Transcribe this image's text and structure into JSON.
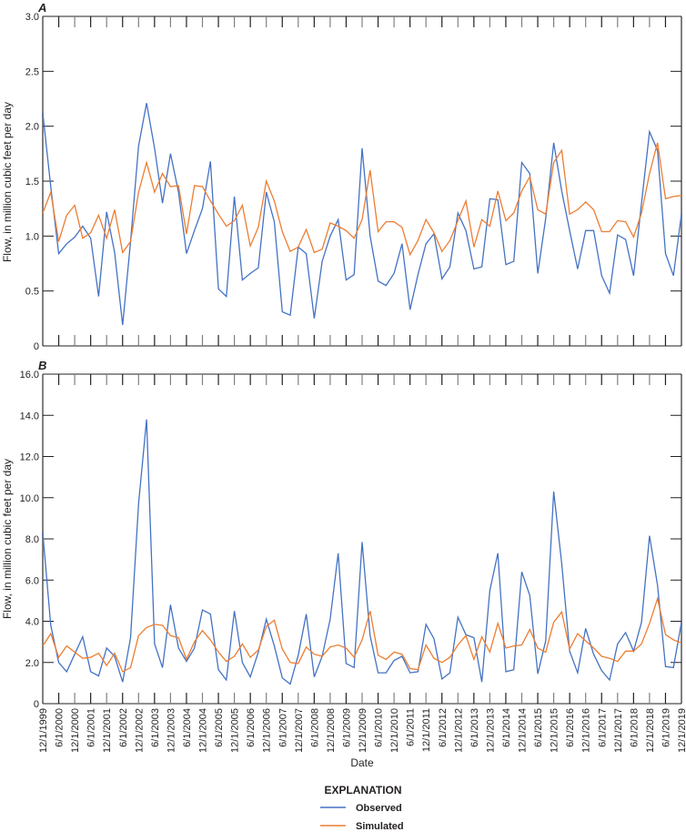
{
  "chart_data": [
    {
      "panel": "A",
      "type": "line",
      "title": "",
      "xlabel": "Date",
      "ylabel": "Flow, in million cubic feet per day",
      "ylim": [
        0,
        3.0
      ],
      "yticks": [
        "0",
        "0.5",
        "1.0",
        "1.5",
        "2.0",
        "2.5",
        "3.0"
      ],
      "ytick_values": [
        0,
        0.5,
        1.0,
        1.5,
        2.0,
        2.5,
        3.0
      ],
      "grid": false,
      "x_start": "12/1/1999",
      "x_end": "12/1/2019",
      "x_step": "quarterly",
      "series": [
        {
          "name": "Observed",
          "color": "#4472c4",
          "values": [
            2.12,
            1.45,
            0.84,
            0.93,
            0.99,
            1.09,
            0.98,
            0.45,
            1.22,
            0.85,
            0.19,
            0.95,
            1.82,
            2.21,
            1.8,
            1.3,
            1.75,
            1.4,
            0.84,
            1.05,
            1.25,
            1.68,
            0.52,
            0.45,
            1.36,
            0.6,
            0.66,
            0.71,
            1.4,
            1.13,
            0.31,
            0.28,
            0.9,
            0.84,
            0.25,
            0.77,
            1.0,
            1.15,
            0.6,
            0.65,
            1.8,
            1.0,
            0.59,
            0.55,
            0.66,
            0.93,
            0.33,
            0.65,
            0.93,
            1.02,
            0.61,
            0.72,
            1.21,
            1.05,
            0.7,
            0.72,
            1.34,
            1.33,
            0.74,
            0.77,
            1.67,
            1.57,
            0.66,
            1.16,
            1.85,
            1.41,
            1.05,
            0.7,
            1.05,
            1.05,
            0.64,
            0.48,
            1.01,
            0.97,
            0.64,
            1.3,
            1.95,
            1.78,
            0.84,
            0.64,
            1.2
          ]
        },
        {
          "name": "Simulated",
          "color": "#ed7d31",
          "values": [
            1.21,
            1.4,
            0.95,
            1.19,
            1.28,
            0.98,
            1.03,
            1.19,
            0.98,
            1.24,
            0.85,
            0.95,
            1.4,
            1.67,
            1.4,
            1.57,
            1.45,
            1.46,
            1.02,
            1.46,
            1.45,
            1.32,
            1.2,
            1.09,
            1.14,
            1.28,
            0.91,
            1.08,
            1.5,
            1.32,
            1.04,
            0.86,
            0.9,
            1.06,
            0.85,
            0.88,
            1.12,
            1.09,
            1.05,
            0.98,
            1.15,
            1.6,
            1.04,
            1.13,
            1.13,
            1.08,
            0.83,
            0.96,
            1.15,
            1.03,
            0.86,
            0.96,
            1.14,
            1.32,
            0.9,
            1.15,
            1.09,
            1.41,
            1.14,
            1.21,
            1.41,
            1.54,
            1.24,
            1.2,
            1.67,
            1.78,
            1.2,
            1.24,
            1.31,
            1.24,
            1.04,
            1.04,
            1.14,
            1.13,
            0.99,
            1.21,
            1.57,
            1.85,
            1.34,
            1.36,
            1.37
          ]
        }
      ],
      "legend": {
        "title": "EXPLANATION",
        "position": "bottom-center"
      }
    },
    {
      "panel": "B",
      "type": "line",
      "title": "",
      "xlabel": "Date",
      "ylabel": "Flow, in million cubic feet per day",
      "ylim": [
        0,
        16.0
      ],
      "yticks": [
        "0",
        "2.0",
        "4.0",
        "6.0",
        "8.0",
        "10.0",
        "12.0",
        "14.0",
        "16.0"
      ],
      "ytick_values": [
        0,
        2,
        4,
        6,
        8,
        10,
        12,
        14,
        16
      ],
      "grid": false,
      "x_start": "12/1/1999",
      "x_end": "12/1/2019",
      "x_step": "quarterly",
      "series": [
        {
          "name": "Observed",
          "color": "#4472c4",
          "values": [
            8.3,
            3.8,
            2.0,
            1.55,
            2.4,
            3.25,
            1.55,
            1.35,
            2.7,
            2.3,
            1.05,
            3.2,
            9.7,
            13.8,
            2.9,
            1.75,
            4.8,
            2.7,
            2.05,
            2.7,
            4.55,
            4.35,
            1.65,
            1.15,
            4.5,
            2.0,
            1.3,
            2.5,
            4.1,
            2.8,
            1.25,
            0.95,
            2.35,
            4.35,
            1.3,
            2.3,
            4.1,
            7.3,
            1.95,
            1.75,
            7.85,
            3.3,
            1.5,
            1.5,
            2.1,
            2.3,
            1.5,
            1.55,
            3.85,
            3.15,
            1.2,
            1.5,
            4.2,
            3.35,
            3.2,
            1.05,
            5.5,
            7.3,
            1.55,
            1.65,
            6.4,
            5.25,
            1.45,
            3.05,
            10.3,
            6.8,
            2.55,
            1.5,
            3.65,
            2.4,
            1.6,
            1.15,
            2.9,
            3.45,
            2.55,
            3.95,
            8.15,
            5.75,
            1.8,
            1.75,
            3.95
          ]
        },
        {
          "name": "Simulated",
          "color": "#ed7d31",
          "values": [
            2.8,
            3.4,
            2.25,
            2.8,
            2.5,
            2.2,
            2.25,
            2.45,
            1.85,
            2.45,
            1.55,
            1.75,
            3.3,
            3.7,
            3.85,
            3.8,
            3.3,
            3.2,
            2.15,
            3.0,
            3.55,
            3.1,
            2.5,
            2.05,
            2.3,
            2.9,
            2.25,
            2.6,
            3.75,
            4.05,
            2.65,
            2.0,
            1.95,
            2.75,
            2.4,
            2.3,
            2.75,
            2.85,
            2.7,
            2.25,
            3.1,
            4.5,
            2.35,
            2.15,
            2.5,
            2.4,
            1.7,
            1.65,
            2.85,
            2.2,
            2.0,
            2.25,
            2.85,
            3.3,
            2.15,
            3.25,
            2.5,
            3.9,
            2.7,
            2.8,
            2.85,
            3.6,
            2.7,
            2.5,
            3.95,
            4.45,
            2.65,
            3.4,
            3.05,
            2.7,
            2.3,
            2.2,
            2.05,
            2.55,
            2.55,
            2.9,
            3.9,
            5.1,
            3.35,
            3.1,
            2.95
          ]
        }
      ],
      "legend": {
        "title": "EXPLANATION",
        "position": "bottom-center"
      }
    }
  ],
  "figure": {
    "panel_a_label": "A",
    "panel_b_label": "B",
    "ylabel": "Flow, in million cubic feet per day",
    "xlabel": "Date",
    "x_tick_labels": [
      "12/1/1999",
      "6/1/2000",
      "12/1/2000",
      "6/1/2001",
      "12/1/2001",
      "6/1/2002",
      "12/1/2002",
      "6/1/2003",
      "12/1/2003",
      "6/1/2004",
      "12/1/2004",
      "6/1/2005",
      "12/1/2005",
      "6/1/2006",
      "12/1/2006",
      "6/1/2007",
      "12/1/2007",
      "6/1/2008",
      "12/1/2008",
      "6/1/2009",
      "12/1/2009",
      "6/1/2010",
      "12/1/2010",
      "6/1/2011",
      "12/1/2011",
      "6/1/2012",
      "12/1/2012",
      "6/1/2013",
      "12/1/2013",
      "6/1/2014",
      "12/1/2014",
      "6/1/2015",
      "12/1/2015",
      "6/1/2016",
      "12/1/2016",
      "6/1/2017",
      "12/1/2017",
      "6/1/2018",
      "12/1/2018",
      "6/1/2019",
      "12/1/2019"
    ],
    "legend": {
      "title": "EXPLANATION",
      "items": [
        {
          "label": "Observed",
          "color": "#4472c4"
        },
        {
          "label": "Simulated",
          "color": "#ed7d31"
        }
      ]
    },
    "colors": {
      "axis": "#231f20",
      "tick_gray": "#808080",
      "observed": "#4472c4",
      "simulated": "#ed7d31"
    }
  }
}
